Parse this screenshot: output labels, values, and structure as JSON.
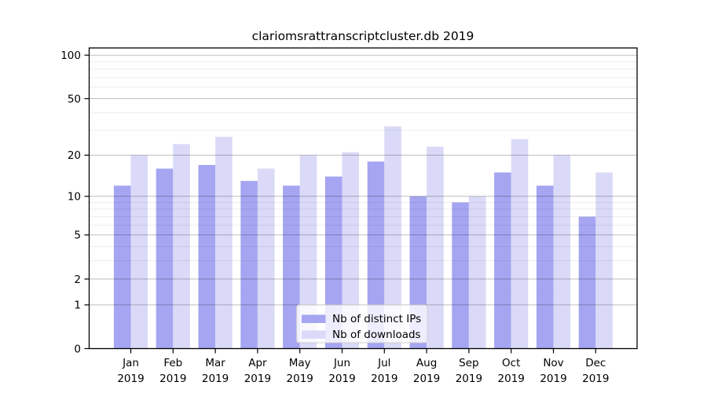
{
  "chart_data": {
    "type": "bar",
    "title": "clariomsrattranscriptcluster.db 2019",
    "categories": [
      "Jan",
      "Feb",
      "Mar",
      "Apr",
      "May",
      "Jun",
      "Jul",
      "Aug",
      "Sep",
      "Oct",
      "Nov",
      "Dec"
    ],
    "category_year": "2019",
    "series": [
      {
        "name": "Nb of distinct IPs",
        "color": "#a5a5f2",
        "values": [
          12,
          16,
          17,
          13,
          12,
          14,
          18,
          10,
          9,
          15,
          12,
          7
        ]
      },
      {
        "name": "Nb of downloads",
        "color": "#dadaf8",
        "values": [
          20,
          24,
          27,
          16,
          20,
          21,
          32,
          23,
          10,
          26,
          20,
          15
        ]
      }
    ],
    "yscale": "log1p",
    "yticks": [
      0,
      1,
      2,
      5,
      10,
      20,
      50,
      100
    ],
    "yticks_minor": [
      3,
      4,
      6,
      7,
      8,
      9,
      30,
      40,
      60,
      70,
      80,
      90
    ],
    "ylim": [
      0,
      112
    ],
    "grid": "on",
    "legend_position": "lower center"
  },
  "colors": {
    "spine": "#000000",
    "grid_major": "rgba(0,0,0,0.25)",
    "grid_minor": "rgba(0,0,0,0.07)",
    "legend_bg": "rgba(255,255,255,0.8)",
    "legend_border": "#cccccc",
    "text": "#000000"
  }
}
